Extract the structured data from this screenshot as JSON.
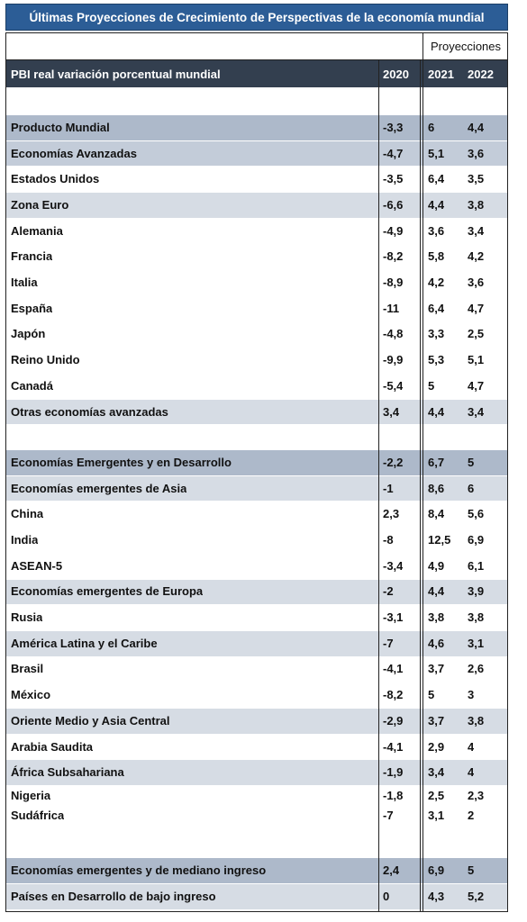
{
  "title": "Últimas Proyecciones de Crecimiento de Perspectivas de la economía mundial",
  "header": {
    "group": "Proyecciones",
    "label": "PBI real variación porcentual mundial",
    "years": [
      "2020",
      "2021",
      "2022"
    ],
    "fill": "#333f4f"
  },
  "table": {
    "rows": [
      {
        "label": "Producto Mundial",
        "values": [
          "-3,3",
          "6",
          "4,4"
        ],
        "fill": "#adb9ca"
      },
      {
        "label": "Economías Avanzadas",
        "values": [
          "-4,7",
          "5,1",
          "3,6"
        ],
        "fill": "#c3ccd9"
      },
      {
        "label": "Estados Unidos",
        "values": [
          "-3,5",
          "6,4",
          "3,5"
        ]
      },
      {
        "label": "Zona Euro",
        "values": [
          "-6,6",
          "4,4",
          "3,8"
        ],
        "fill": "#d6dce4"
      },
      {
        "label": "Alemania",
        "values": [
          "-4,9",
          "3,6",
          "3,4"
        ]
      },
      {
        "label": "Francia",
        "values": [
          "-8,2",
          "5,8",
          "4,2"
        ]
      },
      {
        "label": "Italia",
        "values": [
          "-8,9",
          "4,2",
          "3,6"
        ]
      },
      {
        "label": "España",
        "values": [
          "-11",
          "6,4",
          "4,7"
        ]
      },
      {
        "label": "Japón",
        "values": [
          "-4,8",
          "3,3",
          "2,5"
        ]
      },
      {
        "label": "Reino Unido",
        "values": [
          "-9,9",
          "5,3",
          "5,1"
        ]
      },
      {
        "label": "Canadá",
        "values": [
          "-5,4",
          "5",
          "4,7"
        ]
      },
      {
        "label": "Otras economías avanzadas",
        "values": [
          "3,4",
          "4,4",
          "3,4"
        ],
        "fill": "#d6dce4"
      },
      {
        "label": "Economías Emergentes y en Desarrollo",
        "values": [
          "-2,2",
          "6,7",
          "5"
        ],
        "fill": "#adb9ca"
      },
      {
        "label": "Economías emergentes de Asia",
        "values": [
          "-1",
          "8,6",
          "6"
        ],
        "fill": "#d6dce4"
      },
      {
        "label": "China",
        "values": [
          "2,3",
          "8,4",
          "5,6"
        ]
      },
      {
        "label": "India",
        "values": [
          "-8",
          "12,5",
          "6,9"
        ]
      },
      {
        "label": "ASEAN-5",
        "values": [
          "-3,4",
          "4,9",
          "6,1"
        ]
      },
      {
        "label": "Economías emergentes de Europa",
        "values": [
          "-2",
          "4,4",
          "3,9"
        ],
        "fill": "#d6dce4"
      },
      {
        "label": "Rusia",
        "values": [
          "-3,1",
          "3,8",
          "3,8"
        ]
      },
      {
        "label": "América Latina y el Caribe",
        "values": [
          "-7",
          "4,6",
          "3,1"
        ],
        "fill": "#d6dce4"
      },
      {
        "label": "Brasil",
        "values": [
          "-4,1",
          "3,7",
          "2,6"
        ]
      },
      {
        "label": "México",
        "values": [
          "-8,2",
          "5",
          "3"
        ]
      },
      {
        "label": "Oriente Medio y Asia Central",
        "values": [
          "-2,9",
          "3,7",
          "3,8"
        ],
        "fill": "#d6dce4"
      },
      {
        "label": "Arabia Saudita",
        "values": [
          "-4,1",
          "2,9",
          "4"
        ]
      },
      {
        "label": "África Subsahariana",
        "values": [
          "-1,9",
          "3,4",
          "4"
        ],
        "fill": "#d6dce4"
      },
      {
        "label": "Nigeria",
        "values": [
          "-1,8",
          "2,5",
          "2,3"
        ]
      },
      {
        "label": "Sudáfrica",
        "values": [
          "-7",
          "3,1",
          "2"
        ]
      },
      {
        "label": "Economías emergentes y de mediano ingreso",
        "values": [
          "2,4",
          "6,9",
          "5"
        ],
        "fill": "#adb9ca"
      },
      {
        "label": "Países en Desarrollo de bajo ingreso",
        "values": [
          "0",
          "4,3",
          "5,2"
        ],
        "fill": "#d6dce4"
      }
    ]
  }
}
